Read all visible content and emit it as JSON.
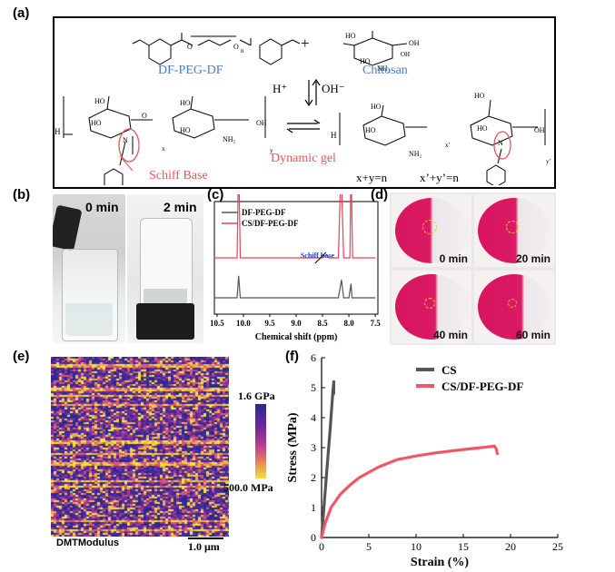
{
  "panel_a": {
    "label": "(a)",
    "df_peg_df": "DF-PEG-DF",
    "chitosan": "Chitosan",
    "plus": "+",
    "h_plus": "H⁺",
    "oh_minus": "OH⁻",
    "schiff_base": "Schiff Base",
    "dynamic_gel": "Dynamic gel",
    "eq1": "x+y=n",
    "eq2": "x’+y’=n"
  },
  "panel_b": {
    "label": "(b)",
    "t0": "0 min",
    "t1": "2 min"
  },
  "panel_c": {
    "label": "(c)",
    "annotation": "Schiff base",
    "chart_data": {
      "type": "line",
      "xlabel": "Chemical shift (ppm)",
      "ticks": [
        "10.5",
        "10.0",
        "9.5",
        "9.0",
        "8.5",
        "8.0",
        "7.5"
      ],
      "series": [
        {
          "name": "DF-PEG-DF",
          "color": "#555555",
          "x": [
            10.55,
            10.12,
            10.09,
            10.06,
            9.5,
            9.0,
            8.5,
            8.2,
            8.14,
            8.1,
            8.0,
            7.96,
            7.94,
            7.5
          ],
          "y": [
            0.0,
            0.0,
            0.55,
            0.0,
            0.0,
            0.0,
            0.0,
            0.0,
            0.45,
            0.0,
            0.0,
            0.35,
            0.0,
            0.0
          ]
        },
        {
          "name": "CS/DF-PEG-DF",
          "color": "#ef3d57",
          "x": [
            10.55,
            10.12,
            10.09,
            10.06,
            9.5,
            9.0,
            8.5,
            8.42,
            8.38,
            8.3,
            8.2,
            8.15,
            8.1,
            7.98,
            7.96,
            7.93,
            7.5
          ],
          "y": [
            0.0,
            0.0,
            1.0,
            0.0,
            0.0,
            0.0,
            0.0,
            0.03,
            0.0,
            0.0,
            0.0,
            0.95,
            0.0,
            0.0,
            1.0,
            0.0,
            0.0
          ]
        }
      ]
    }
  },
  "panel_d": {
    "label": "(d)",
    "times": [
      "0 min",
      "20 min",
      "40 min",
      "60 min"
    ]
  },
  "panel_e": {
    "label": "(e)",
    "scale_max": "1.6 GPa",
    "scale_min": "500.0 MPa",
    "channel": "DMTModulus",
    "scalebar": "1.0 μm"
  },
  "panel_f": {
    "label": "(f)",
    "chart_data": {
      "type": "line",
      "xlabel": "Strain (%)",
      "ylabel": "Stress (MPa)",
      "xlim": [
        0,
        25
      ],
      "ylim": [
        0,
        6
      ],
      "xticks": [
        "0",
        "5",
        "10",
        "15",
        "20",
        "25"
      ],
      "yticks": [
        "0",
        "1",
        "2",
        "3",
        "4",
        "5",
        "6"
      ],
      "legend_position": "top-right",
      "series": [
        {
          "name": "CS",
          "color": "#555555",
          "x": [
            0,
            0.3,
            0.6,
            0.9,
            1.2,
            1.3,
            1.28
          ],
          "y": [
            0,
            1.2,
            2.4,
            3.6,
            4.9,
            5.2,
            4.8
          ]
        },
        {
          "name": "CS/DF-PEG-DF",
          "color": "#f25766",
          "x": [
            0,
            0.4,
            1,
            2,
            3,
            4,
            6,
            8,
            10,
            12,
            14,
            16,
            17.5,
            18.3,
            18.5,
            18.6
          ],
          "y": [
            0,
            0.5,
            1.0,
            1.45,
            1.75,
            2.0,
            2.35,
            2.6,
            2.72,
            2.82,
            2.9,
            2.97,
            3.02,
            3.05,
            2.95,
            2.8
          ]
        }
      ]
    }
  }
}
